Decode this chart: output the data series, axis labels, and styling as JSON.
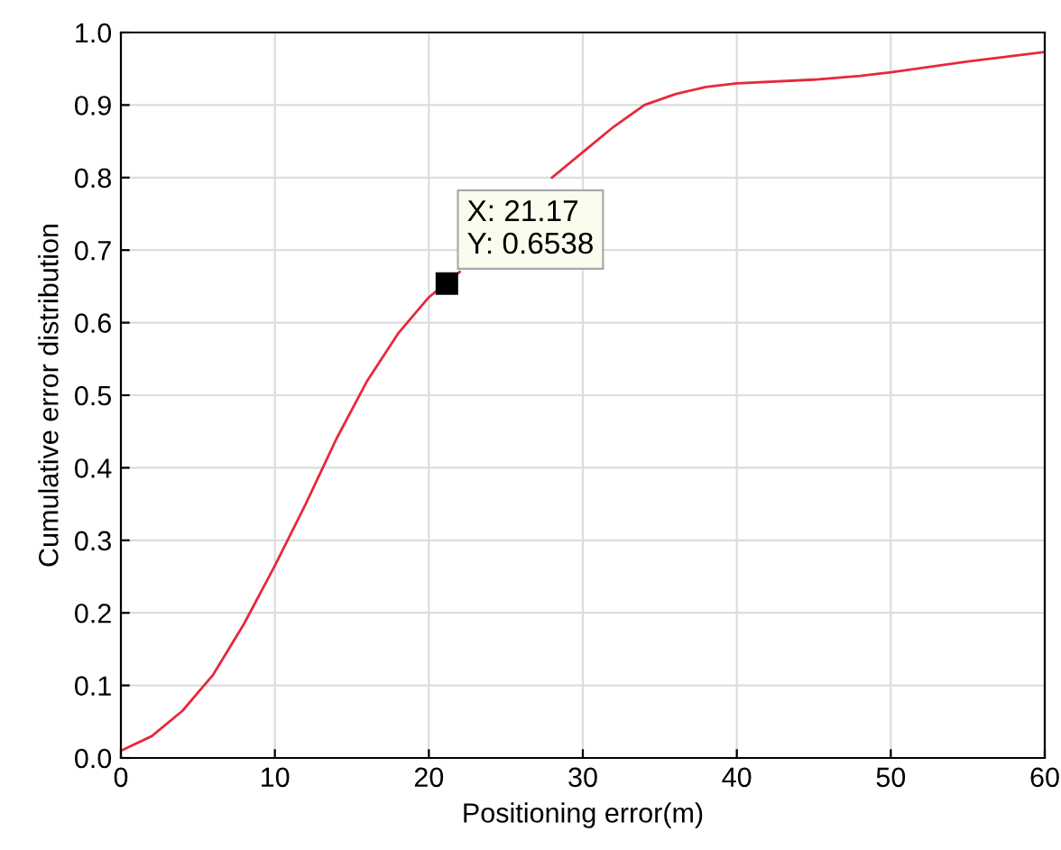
{
  "chart_data": {
    "type": "line",
    "xlabel": "Positioning error(m)",
    "ylabel": "Cumulative error distribution",
    "x": [
      0,
      2,
      4,
      6,
      8,
      10,
      12,
      14,
      16,
      18,
      20,
      22,
      24,
      26,
      28,
      30,
      32,
      34,
      36,
      38,
      40,
      45,
      48,
      50,
      55,
      60
    ],
    "series": [
      {
        "color": "#e8283c",
        "values": [
          0.01,
          0.03,
          0.065,
          0.115,
          0.185,
          0.265,
          0.35,
          0.44,
          0.52,
          0.585,
          0.635,
          0.67,
          null,
          null,
          0.8,
          0.835,
          0.87,
          0.9,
          0.915,
          0.925,
          0.93,
          0.935,
          0.94,
          0.945,
          0.96,
          0.973
        ]
      }
    ],
    "xlim": [
      0,
      60
    ],
    "xticks": [
      0,
      10,
      20,
      30,
      40,
      50,
      60
    ],
    "ylim": [
      0,
      1
    ],
    "yticks": [
      {
        "value": 0,
        "label": "0.0"
      },
      0.1,
      0.2,
      0.3,
      0.4,
      0.5,
      0.6,
      0.7,
      0.8,
      0.9,
      {
        "value": 1,
        "label": "1.0"
      }
    ],
    "grid": true,
    "marker": "none",
    "line_style": "solid",
    "annotations": [
      {
        "text": "X: 21.17\nY: 0.6538",
        "x": 21.17,
        "y": 0.6538
      }
    ]
  }
}
